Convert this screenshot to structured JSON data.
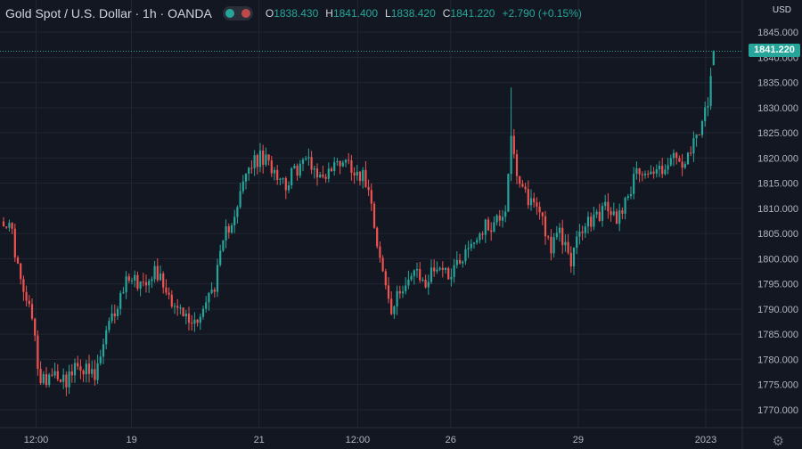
{
  "header": {
    "title": "Gold Spot / U.S. Dollar · 1h · OANDA",
    "open_label": "O",
    "open": "1838.430",
    "high_label": "H",
    "high": "1841.400",
    "low_label": "L",
    "low": "1838.420",
    "close_label": "C",
    "close": "1841.220",
    "change": "+2.790 (+0.15%)"
  },
  "currency": "USD",
  "last_price": "1841.220",
  "colors": {
    "up": "#26a69a",
    "down": "#ef5350",
    "background": "#131722",
    "grid": "#232632"
  },
  "icons": {
    "settings": "gear-icon"
  },
  "chart_data": {
    "type": "candlestick",
    "yaxis": {
      "min": 1767.5,
      "max": 1847.5,
      "ticks": [
        "1770.000",
        "1775.000",
        "1780.000",
        "1785.000",
        "1790.000",
        "1795.000",
        "1800.000",
        "1805.000",
        "1810.000",
        "1815.000",
        "1820.000",
        "1825.000",
        "1830.000",
        "1835.000",
        "1840.000",
        "1845.000"
      ]
    },
    "xaxis": {
      "ticks": [
        {
          "label": "12:00",
          "pos": 0.045
        },
        {
          "label": "19",
          "pos": 0.164
        },
        {
          "label": "21",
          "pos": 0.323
        },
        {
          "label": "12:00",
          "pos": 0.446
        },
        {
          "label": "26",
          "pos": 0.562
        },
        {
          "label": "29",
          "pos": 0.721
        },
        {
          "label": "2023",
          "pos": 0.88
        }
      ]
    },
    "last_price": 1841.22,
    "anchors": [
      [
        0,
        1808
      ],
      [
        3,
        1805
      ],
      [
        6,
        1795
      ],
      [
        10,
        1788
      ],
      [
        13,
        1775
      ],
      [
        17,
        1778
      ],
      [
        22,
        1776
      ],
      [
        27,
        1779
      ],
      [
        32,
        1776
      ],
      [
        36,
        1785
      ],
      [
        40,
        1791
      ],
      [
        44,
        1797
      ],
      [
        48,
        1795
      ],
      [
        53,
        1798
      ],
      [
        57,
        1794
      ],
      [
        61,
        1790
      ],
      [
        66,
        1787
      ],
      [
        70,
        1790
      ],
      [
        74,
        1795
      ],
      [
        78,
        1805
      ],
      [
        82,
        1811
      ],
      [
        86,
        1818
      ],
      [
        90,
        1820
      ],
      [
        95,
        1818
      ],
      [
        99,
        1815
      ],
      [
        103,
        1818
      ],
      [
        107,
        1820
      ],
      [
        111,
        1816
      ],
      [
        115,
        1818
      ],
      [
        119,
        1820
      ],
      [
        123,
        1818
      ],
      [
        128,
        1815
      ],
      [
        132,
        1800
      ],
      [
        136,
        1789
      ],
      [
        140,
        1795
      ],
      [
        144,
        1797
      ],
      [
        148,
        1795
      ],
      [
        152,
        1799
      ],
      [
        156,
        1797
      ],
      [
        160,
        1800
      ],
      [
        164,
        1803
      ],
      [
        168,
        1806
      ],
      [
        172,
        1807
      ],
      [
        176,
        1810
      ],
      [
        178,
        1825
      ],
      [
        180,
        1815
      ],
      [
        184,
        1812
      ],
      [
        188,
        1810
      ],
      [
        192,
        1802
      ],
      [
        195,
        1805
      ],
      [
        199,
        1800
      ],
      [
        203,
        1806
      ],
      [
        207,
        1808
      ],
      [
        211,
        1810
      ],
      [
        215,
        1808
      ],
      [
        219,
        1813
      ],
      [
        223,
        1818
      ],
      [
        227,
        1817
      ],
      [
        231,
        1818
      ],
      [
        235,
        1820
      ],
      [
        239,
        1818
      ],
      [
        243,
        1824
      ],
      [
        247,
        1830
      ],
      [
        249,
        1841.22
      ]
    ],
    "ohlc": [
      {
        "t": 249,
        "o": 1838.43,
        "h": 1841.4,
        "l": 1838.42,
        "c": 1841.22
      }
    ]
  }
}
